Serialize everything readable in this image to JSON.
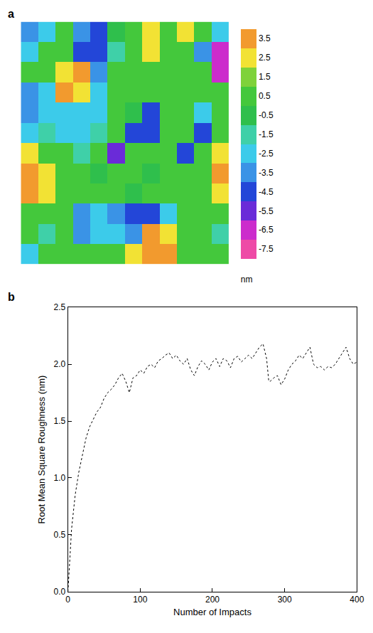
{
  "chart_data": [
    {
      "type": "heatmap",
      "panel": "a",
      "tick_labels": false,
      "z": [
        [
          -3.5,
          -2.5,
          0.5,
          -3.5,
          -4.5,
          -0.5,
          0.5,
          2.5,
          0.5,
          2.5,
          0.5,
          -2.5
        ],
        [
          -2.5,
          0.5,
          0.5,
          -4.5,
          -4.5,
          -1.5,
          0.5,
          2.5,
          0.5,
          0.5,
          -3.5,
          -6.5
        ],
        [
          0.5,
          0.5,
          2.5,
          3.5,
          -3.5,
          0.5,
          0.5,
          0.5,
          0.5,
          0.5,
          0.5,
          -6.5
        ],
        [
          -3.5,
          -2.5,
          3.5,
          2.5,
          -2.5,
          0.5,
          0.5,
          0.5,
          0.5,
          0.5,
          0.5,
          0.5
        ],
        [
          -3.5,
          -2.5,
          -2.5,
          -2.5,
          -2.5,
          0.5,
          -0.5,
          -4.5,
          0.5,
          0.5,
          -2.5,
          0.5
        ],
        [
          -2.5,
          -1.5,
          -2.5,
          -2.5,
          -1.5,
          0.5,
          -4.5,
          -4.5,
          0.5,
          0.5,
          -4.5,
          0.5
        ],
        [
          2.5,
          0.5,
          0.5,
          -1.5,
          0.5,
          -5.5,
          0.5,
          0.5,
          0.5,
          -4.5,
          0.5,
          2.5
        ],
        [
          3.5,
          2.5,
          0.5,
          0.5,
          -0.5,
          0.5,
          0.5,
          -0.5,
          0.5,
          0.5,
          0.5,
          3.5
        ],
        [
          3.5,
          2.5,
          0.5,
          0.5,
          0.5,
          0.5,
          -0.5,
          0.5,
          0.5,
          0.5,
          0.5,
          2.5
        ],
        [
          0.5,
          0.5,
          0.5,
          -3.5,
          -2.5,
          -3.5,
          -4.5,
          -4.5,
          -2.5,
          0.5,
          0.5,
          0.5
        ],
        [
          0.5,
          -1.5,
          0.5,
          -3.5,
          -2.5,
          -2.5,
          -3.5,
          3.5,
          2.5,
          0.5,
          0.5,
          -1.5
        ],
        [
          -2.5,
          0.5,
          0.5,
          0.5,
          0.5,
          0.5,
          2.5,
          3.5,
          3.5,
          0.5,
          0.5,
          0.5
        ]
      ],
      "colorbar": {
        "title": "nm",
        "range": [
          -8,
          4
        ],
        "ticks": [
          3.5,
          2.5,
          1.5,
          0.5,
          -0.5,
          -1.5,
          -2.5,
          -3.5,
          -4.5,
          -5.5,
          -6.5,
          -7.5
        ],
        "colors": [
          "#f29a2e",
          "#f2e234",
          "#7fd23a",
          "#44c83c",
          "#2fbf4c",
          "#3fd0a8",
          "#3ccbea",
          "#3a93e6",
          "#2346d8",
          "#6a2bd8",
          "#cc2ccc",
          "#ee4aa6"
        ]
      }
    },
    {
      "type": "line",
      "panel": "b",
      "x_label": "Number of Impacts",
      "y_label": "Root Mean Square Roughness (nm)",
      "x": [
        0,
        5,
        10,
        15,
        20,
        25,
        30,
        35,
        40,
        45,
        50,
        55,
        60,
        65,
        70,
        75,
        80,
        85,
        90,
        95,
        100,
        105,
        110,
        115,
        120,
        125,
        130,
        135,
        140,
        145,
        150,
        155,
        160,
        165,
        170,
        175,
        180,
        185,
        190,
        195,
        200,
        205,
        210,
        215,
        220,
        225,
        230,
        235,
        240,
        245,
        250,
        255,
        260,
        265,
        270,
        275,
        278,
        280,
        285,
        290,
        295,
        300,
        305,
        310,
        315,
        320,
        325,
        330,
        335,
        340,
        345,
        350,
        355,
        360,
        365,
        370,
        375,
        380,
        385,
        390,
        395,
        400
      ],
      "values": [
        0.0,
        0.55,
        0.85,
        1.05,
        1.2,
        1.35,
        1.45,
        1.52,
        1.58,
        1.62,
        1.7,
        1.75,
        1.78,
        1.82,
        1.88,
        1.92,
        1.85,
        1.75,
        1.88,
        1.9,
        1.95,
        1.92,
        1.98,
        2.0,
        1.97,
        2.03,
        2.05,
        2.08,
        2.1,
        2.05,
        2.08,
        2.03,
        2.0,
        2.05,
        1.95,
        1.9,
        1.98,
        2.03,
        2.0,
        1.95,
        2.02,
        2.05,
        1.98,
        2.05,
        2.03,
        1.97,
        2.05,
        2.07,
        2.02,
        2.05,
        2.08,
        2.05,
        2.1,
        2.15,
        2.18,
        2.05,
        1.85,
        1.85,
        1.88,
        1.9,
        1.82,
        1.87,
        1.95,
        2.0,
        2.03,
        2.08,
        2.05,
        2.1,
        2.15,
        2.0,
        1.97,
        1.98,
        1.95,
        1.98,
        1.97,
        2.0,
        2.05,
        2.1,
        2.15,
        2.05,
        2.0,
        2.02
      ],
      "color": "#000000",
      "line_style": "dotted",
      "grid": false,
      "xlim": [
        0,
        400
      ],
      "xticks": [
        0,
        100,
        200,
        300,
        400
      ],
      "ylim": [
        0,
        2.5
      ],
      "yticks": [
        {
          "value": 0,
          "label": "0.0"
        },
        0.5,
        {
          "value": 1,
          "label": "1.0"
        },
        1.5,
        {
          "value": 2,
          "label": "2.0"
        },
        2.5
      ]
    }
  ]
}
